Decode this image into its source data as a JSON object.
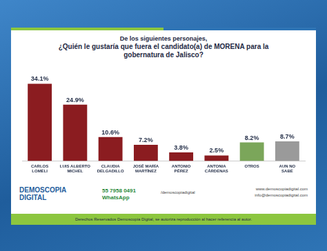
{
  "chart_data": {
    "type": "bar",
    "subtitle": "De los siguientes personajes,",
    "title": "¿Quién le gustaría que fuera el candidato(a) de MORENA para la gobernatura de Jalisco?",
    "categories": [
      "CARLOS LOMELI",
      "LUIS ALBERTO MICHEL",
      "CLAUDIA DELGADILLO",
      "JOSÉ MARÍA MARTÍNEZ",
      "ANTONIO PÉREZ",
      "ANTONIA CÁRDENAS",
      "OTROS",
      "AUN NO SABE"
    ],
    "values": [
      34.1,
      24.9,
      10.6,
      7.2,
      3.8,
      2.5,
      8.2,
      8.7
    ],
    "value_labels": [
      "34.1%",
      "24.9%",
      "10.6%",
      "7.2%",
      "3.8%",
      "2.5%",
      "8.2%",
      "8.7%"
    ],
    "colors": [
      "#8b1c20",
      "#8b1c20",
      "#8b1c20",
      "#8b1c20",
      "#8b1c20",
      "#8b1c20",
      "#7ba65a",
      "#9a9a9a"
    ],
    "ylim": [
      0,
      40
    ],
    "grid": false,
    "data_labels": true,
    "tick_labels": "x"
  },
  "footer": {
    "brand": "DEMOSCOPIA DIGITAL",
    "phone": "55 7958 0491",
    "whatsapp": "WhatsApp",
    "social": "/demoscopiadigital",
    "web": "www.demoscopiadigital.com",
    "email": "info@demoscopiadigital.com",
    "rights": "Derechos Reservados Demoscopia Digital, se autoriza reproducción al hacer referencia al autor."
  }
}
